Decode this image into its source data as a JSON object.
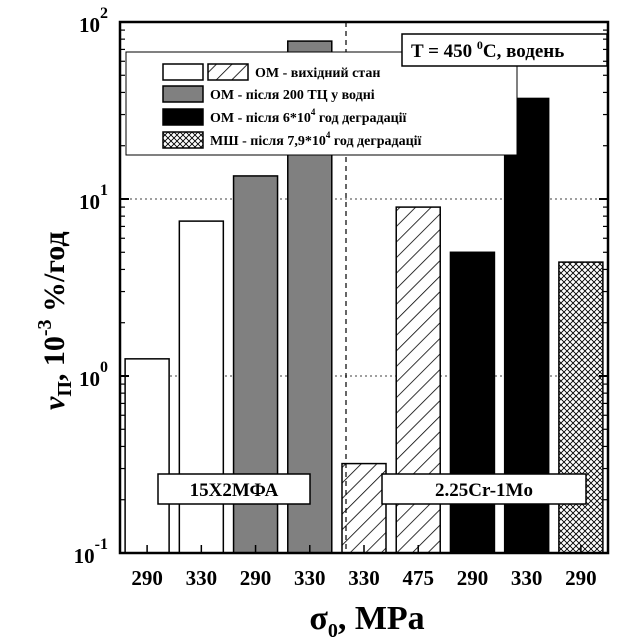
{
  "chart_data": {
    "type": "bar",
    "yscale": "log",
    "ylim": [
      0.1,
      100
    ],
    "y_ticks": [
      {
        "base": "10",
        "exp": "-1"
      },
      {
        "base": "10",
        "exp": "0"
      },
      {
        "base": "10",
        "exp": "1"
      },
      {
        "base": "10",
        "exp": "2"
      }
    ],
    "ylabel": {
      "symbol": "v",
      "sub": "П",
      "rest": ", 10",
      "exp": "-3",
      "unit": " %/год"
    },
    "xlabel": {
      "symbol": "σ",
      "sub": "0",
      "unit": ", MPa"
    },
    "categories": [
      "290",
      "330",
      "290",
      "330",
      "330",
      "475",
      "290",
      "330",
      "290"
    ],
    "values": [
      1.25,
      7.5,
      13.5,
      78,
      0.32,
      9.0,
      5.0,
      37,
      4.4
    ],
    "bar_series": [
      0,
      0,
      1,
      1,
      0,
      0,
      2,
      2,
      3
    ],
    "bar_hatched": [
      false,
      false,
      false,
      false,
      true,
      true,
      false,
      false,
      false
    ],
    "series": [
      {
        "name_parts": [
          "ОМ - вихідний стан"
        ],
        "fill": "#ffffff",
        "pattern": "none"
      },
      {
        "name_parts": [
          "ОМ - після 200 ТЦ у водні"
        ],
        "fill": "#808080",
        "pattern": "none"
      },
      {
        "name_parts": [
          "ОМ - після 6*10",
          "4",
          " год деградації"
        ],
        "fill": "#000000",
        "pattern": "none"
      },
      {
        "name_parts": [
          "МШ - після 7,9*10",
          "4",
          " год деградації"
        ],
        "fill": "#ffffff",
        "pattern": "crosshatch"
      }
    ],
    "group_labels": [
      "15Х2МФА",
      "2.25Cr-1Mo"
    ],
    "condition": {
      "prefix": "T = 450 ",
      "sup": "0",
      "suffix": "C, водень"
    },
    "grid": "horizontal dotted",
    "legend_position": "top-center"
  }
}
